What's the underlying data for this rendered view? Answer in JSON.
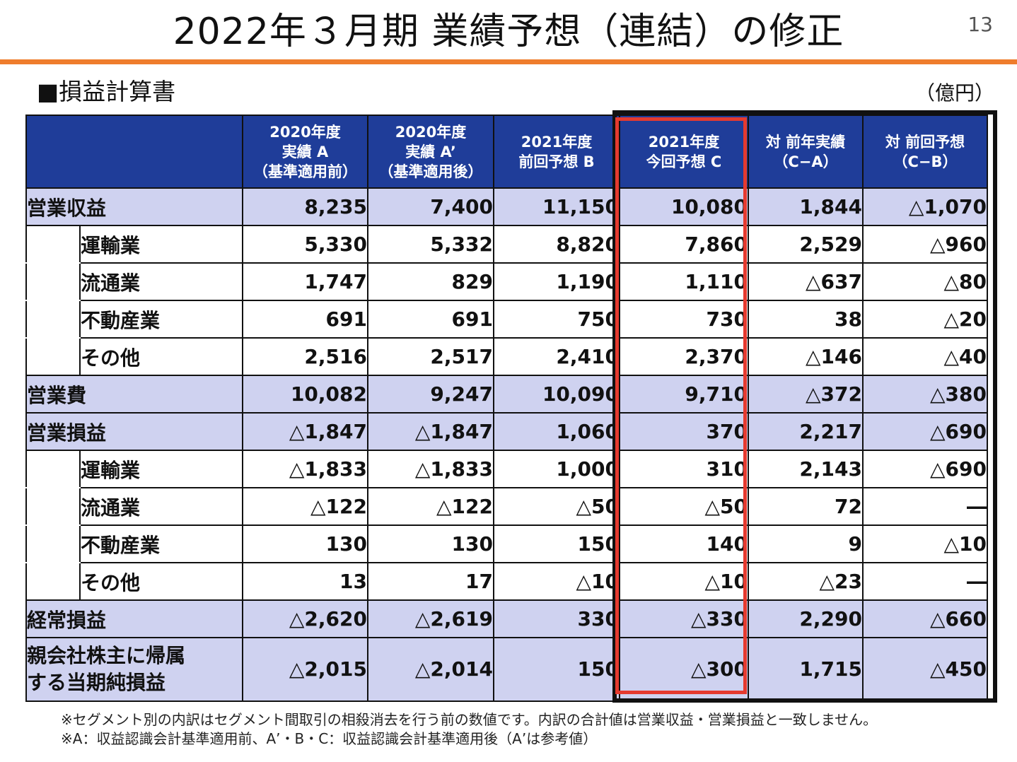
{
  "page": {
    "title": "2022年３月期 業績予想（連結）の修正",
    "number": "13",
    "section": "■損益計算書",
    "unit": "（億円）"
  },
  "table": {
    "headers": [
      "",
      "2020年度\n実績 A\n（基準適用前）",
      "2020年度\n実績 A’\n（基準適用後）",
      "2021年度\n前回予想 B",
      "2021年度\n今回予想 C",
      "対 前年実績\n（C−A）",
      "対 前回予想\n（C−B）"
    ],
    "rows": [
      {
        "label": "営業収益",
        "type": "main",
        "values": [
          "8,235",
          "7,400",
          "11,150",
          "10,080",
          "1,844",
          "△1,070"
        ]
      },
      {
        "label": "運輸業",
        "type": "sub",
        "values": [
          "5,330",
          "5,332",
          "8,820",
          "7,860",
          "2,529",
          "△960"
        ]
      },
      {
        "label": "流通業",
        "type": "sub",
        "values": [
          "1,747",
          "829",
          "1,190",
          "1,110",
          "△637",
          "△80"
        ]
      },
      {
        "label": "不動産業",
        "type": "sub",
        "values": [
          "691",
          "691",
          "750",
          "730",
          "38",
          "△20"
        ]
      },
      {
        "label": "その他",
        "type": "sub",
        "values": [
          "2,516",
          "2,517",
          "2,410",
          "2,370",
          "△146",
          "△40"
        ]
      },
      {
        "label": "営業費",
        "type": "main",
        "values": [
          "10,082",
          "9,247",
          "10,090",
          "9,710",
          "△372",
          "△380"
        ]
      },
      {
        "label": "営業損益",
        "type": "main",
        "values": [
          "△1,847",
          "△1,847",
          "1,060",
          "370",
          "2,217",
          "△690"
        ]
      },
      {
        "label": "運輸業",
        "type": "sub",
        "values": [
          "△1,833",
          "△1,833",
          "1,000",
          "310",
          "2,143",
          "△690"
        ]
      },
      {
        "label": "流通業",
        "type": "sub",
        "values": [
          "△122",
          "△122",
          "△50",
          "△50",
          "72",
          "―"
        ]
      },
      {
        "label": "不動産業",
        "type": "sub",
        "values": [
          "130",
          "130",
          "150",
          "140",
          "9",
          "△10"
        ]
      },
      {
        "label": "その他",
        "type": "sub",
        "values": [
          "13",
          "17",
          "△10",
          "△10",
          "△23",
          "―"
        ]
      },
      {
        "label": "経常損益",
        "type": "main",
        "values": [
          "△2,620",
          "△2,619",
          "330",
          "△330",
          "2,290",
          "△660"
        ]
      },
      {
        "label": "親会社株主に帰属\nする当期純損益",
        "type": "main",
        "values": [
          "△2,015",
          "△2,014",
          "150",
          "△300",
          "1,715",
          "△450"
        ]
      }
    ]
  },
  "notes": [
    "※セグメント別の内訳はセグメント間取引の相殺消去を行う前の数値です。内訳の合計値は営業収益・営業損益と一致しません。",
    "※A：収益認識会計基準適用前、A’・B・C：収益認識会計基準適用後（A’は参考値）"
  ],
  "colors": {
    "header_bg": "#1f3d99",
    "main_row_bg": "#cfd2f0",
    "accent_rule": "#ef7d2d",
    "highlight_red": "#e53a2f"
  }
}
